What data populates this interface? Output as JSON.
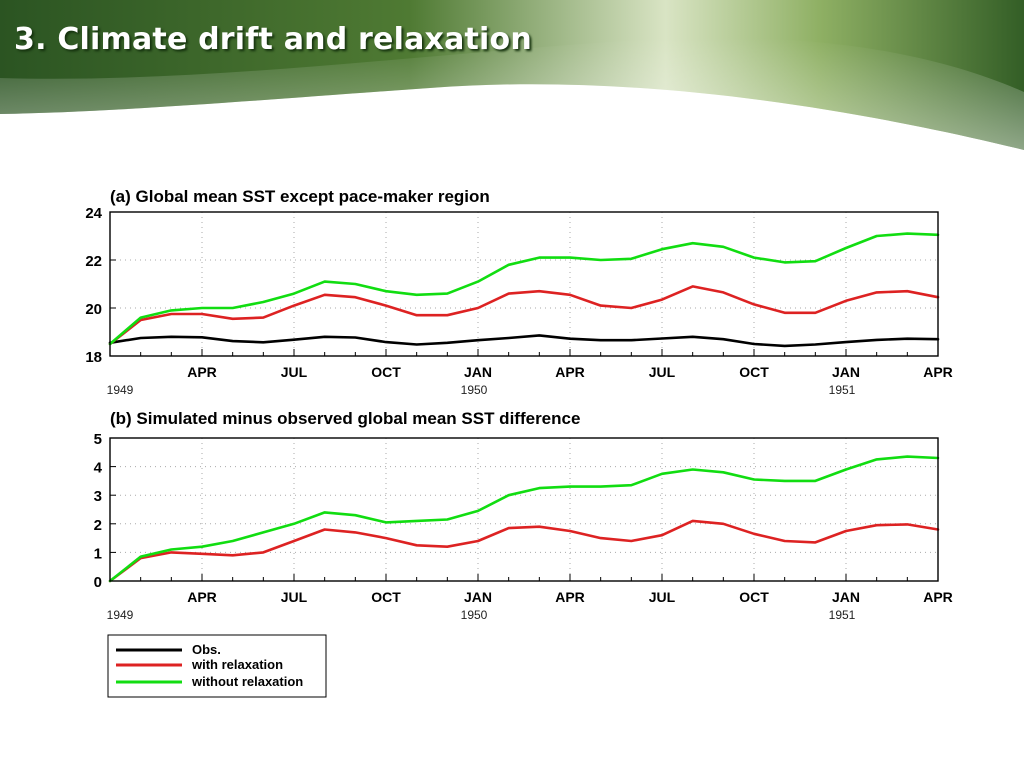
{
  "slide": {
    "title": "3. Climate drift and relaxation"
  },
  "colors": {
    "obs": "#000000",
    "with_relaxation": "#dd2222",
    "without_relaxation": "#11dd11",
    "banner_dark": "#2f5a24",
    "banner_light": "#eaf0dc"
  },
  "legend": {
    "placement": "bottom-left",
    "entries": [
      "Obs.",
      "with relaxation",
      "without relaxation"
    ]
  },
  "chart_data": [
    {
      "type": "line",
      "title": "(a) Global mean SST except pace-maker region",
      "xlabel": "",
      "ylabel": "",
      "xlim": [
        "1949-01",
        "1951-04"
      ],
      "ylim": [
        18,
        24
      ],
      "yticks": [
        18,
        20,
        22,
        24
      ],
      "grid": "dotted",
      "x_tick_labels": [
        "APR",
        "JUL",
        "OCT",
        "JAN",
        "APR",
        "JUL",
        "OCT",
        "JAN",
        "APR"
      ],
      "year_labels": [
        "1949",
        "1950",
        "1951"
      ],
      "x": [
        "1949-01",
        "1949-02",
        "1949-03",
        "1949-04",
        "1949-05",
        "1949-06",
        "1949-07",
        "1949-08",
        "1949-09",
        "1949-10",
        "1949-11",
        "1949-12",
        "1950-01",
        "1950-02",
        "1950-03",
        "1950-04",
        "1950-05",
        "1950-06",
        "1950-07",
        "1950-08",
        "1950-09",
        "1950-10",
        "1950-11",
        "1950-12",
        "1951-01",
        "1951-02",
        "1951-03",
        "1951-04"
      ],
      "series": [
        {
          "name": "Obs.",
          "values": [
            18.55,
            18.75,
            18.8,
            18.78,
            18.62,
            18.57,
            18.68,
            18.8,
            18.77,
            18.58,
            18.48,
            18.55,
            18.66,
            18.75,
            18.86,
            18.72,
            18.66,
            18.66,
            18.73,
            18.8,
            18.7,
            18.5,
            18.42,
            18.48,
            18.58,
            18.67,
            18.72,
            18.7
          ]
        },
        {
          "name": "with relaxation",
          "values": [
            18.5,
            19.5,
            19.75,
            19.75,
            19.55,
            19.6,
            20.1,
            20.55,
            20.45,
            20.1,
            19.7,
            19.7,
            20.0,
            20.6,
            20.7,
            20.55,
            20.1,
            20.0,
            20.35,
            20.9,
            20.65,
            20.15,
            19.8,
            19.8,
            20.3,
            20.65,
            20.7,
            20.45
          ]
        },
        {
          "name": "without relaxation",
          "values": [
            18.5,
            19.6,
            19.9,
            20.0,
            20.0,
            20.25,
            20.6,
            21.1,
            21.0,
            20.7,
            20.55,
            20.6,
            21.1,
            21.8,
            22.1,
            22.1,
            22.0,
            22.05,
            22.45,
            22.7,
            22.55,
            22.1,
            21.9,
            21.95,
            22.5,
            23.0,
            23.1,
            23.05
          ]
        }
      ]
    },
    {
      "type": "line",
      "title": "(b) Simulated minus observed global mean SST difference",
      "xlabel": "",
      "ylabel": "",
      "xlim": [
        "1949-01",
        "1951-04"
      ],
      "ylim": [
        0,
        5
      ],
      "yticks": [
        0,
        1,
        2,
        3,
        4,
        5
      ],
      "grid": "dotted",
      "x_tick_labels": [
        "APR",
        "JUL",
        "OCT",
        "JAN",
        "APR",
        "JUL",
        "OCT",
        "JAN",
        "APR"
      ],
      "year_labels": [
        "1949",
        "1950",
        "1951"
      ],
      "x": [
        "1949-01",
        "1949-02",
        "1949-03",
        "1949-04",
        "1949-05",
        "1949-06",
        "1949-07",
        "1949-08",
        "1949-09",
        "1949-10",
        "1949-11",
        "1949-12",
        "1950-01",
        "1950-02",
        "1950-03",
        "1950-04",
        "1950-05",
        "1950-06",
        "1950-07",
        "1950-08",
        "1950-09",
        "1950-10",
        "1950-11",
        "1950-12",
        "1951-01",
        "1951-02",
        "1951-03",
        "1951-04"
      ],
      "series": [
        {
          "name": "with relaxation",
          "values": [
            0.0,
            0.8,
            1.0,
            0.95,
            0.9,
            1.0,
            1.4,
            1.8,
            1.7,
            1.5,
            1.25,
            1.2,
            1.4,
            1.85,
            1.9,
            1.75,
            1.5,
            1.4,
            1.6,
            2.1,
            2.0,
            1.65,
            1.4,
            1.35,
            1.75,
            1.95,
            1.98,
            1.8
          ]
        },
        {
          "name": "without relaxation",
          "values": [
            0.0,
            0.85,
            1.1,
            1.2,
            1.4,
            1.7,
            2.0,
            2.4,
            2.3,
            2.05,
            2.1,
            2.15,
            2.45,
            3.0,
            3.25,
            3.3,
            3.3,
            3.35,
            3.75,
            3.9,
            3.8,
            3.55,
            3.5,
            3.5,
            3.9,
            4.25,
            4.35,
            4.3
          ]
        }
      ]
    }
  ]
}
